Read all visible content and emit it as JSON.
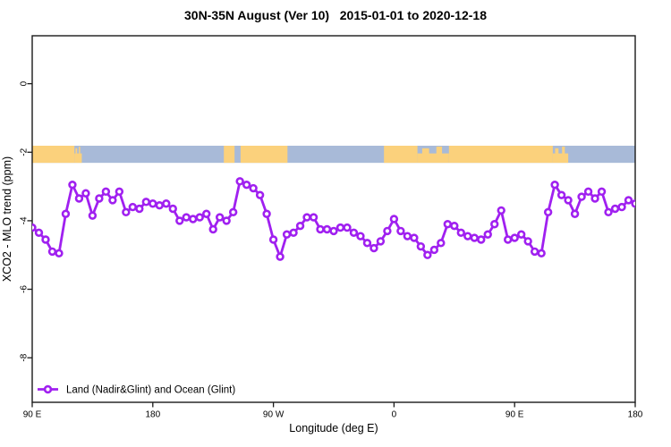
{
  "title": "30N-35N August (Ver 10)   2015-01-01 to 2020-12-18",
  "colors": {
    "series": "#A020F0",
    "marker_fill": "#ffffff",
    "land": "#FBD17C",
    "ocean": "#A8BAD8",
    "axis": "#1a1a1a"
  },
  "chart_data": {
    "type": "line",
    "title": "30N-35N August (Ver 10)   2015-01-01 to 2020-12-18",
    "xlabel": "Longitude (deg E)",
    "ylabel": "XCO2 - MLO trend (ppm)",
    "xlim": [
      90,
      540
    ],
    "ylim": [
      -9.3,
      1.4
    ],
    "grid": false,
    "legend_position": "bottom-left",
    "x_ticks": [
      {
        "pos": 90,
        "label": "90 E"
      },
      {
        "pos": 180,
        "label": "180"
      },
      {
        "pos": 270,
        "label": "90 W"
      },
      {
        "pos": 360,
        "label": "0"
      },
      {
        "pos": 450,
        "label": "90 E"
      },
      {
        "pos": 540,
        "label": "180"
      }
    ],
    "y_ticks": [
      {
        "pos": 0,
        "label": "0"
      },
      {
        "pos": -2,
        "label": "-2"
      },
      {
        "pos": -4,
        "label": "-4"
      },
      {
        "pos": -6,
        "label": "-6"
      },
      {
        "pos": -8,
        "label": "-8"
      }
    ],
    "map_band": {
      "note": "world coastline strip for latitude band 30N-35N drawn across the plot",
      "y_top": -1.81,
      "y_bottom": -2.31,
      "land_segments": [
        {
          "from": 90,
          "to": 121.5,
          "type": "land"
        },
        {
          "from": 121.5,
          "to": 127,
          "type": "coast"
        },
        {
          "from": 233,
          "to": 241,
          "type": "land"
        },
        {
          "from": 245.5,
          "to": 280.5,
          "type": "land"
        },
        {
          "from": 352.5,
          "to": 377.5,
          "type": "land"
        },
        {
          "from": 377.5,
          "to": 401,
          "type": "coast"
        },
        {
          "from": 401,
          "to": 478.5,
          "type": "land"
        },
        {
          "from": 478.5,
          "to": 490,
          "type": "coast"
        }
      ]
    },
    "series": [
      {
        "name": "Land (Nadir&Glint) and Ocean (Glint)",
        "x_start": 90,
        "x_step": 5,
        "values": [
          -4.2,
          -4.35,
          -4.55,
          -4.9,
          -4.95,
          -3.8,
          -2.95,
          -3.35,
          -3.2,
          -3.85,
          -3.35,
          -3.15,
          -3.4,
          -3.15,
          -3.75,
          -3.6,
          -3.65,
          -3.45,
          -3.5,
          -3.55,
          -3.5,
          -3.65,
          -4.0,
          -3.9,
          -3.95,
          -3.9,
          -3.8,
          -4.25,
          -3.9,
          -4.0,
          -3.75,
          -2.85,
          -2.95,
          -3.05,
          -3.25,
          -3.8,
          -4.55,
          -5.05,
          -4.4,
          -4.35,
          -4.15,
          -3.9,
          -3.9,
          -4.25,
          -4.25,
          -4.3,
          -4.2,
          -4.2,
          -4.35,
          -4.45,
          -4.65,
          -4.8,
          -4.6,
          -4.3,
          -3.95,
          -4.3,
          -4.45,
          -4.5,
          -4.75,
          -5.0,
          -4.85,
          -4.65,
          -4.1,
          -4.15,
          -4.35,
          -4.45,
          -4.5,
          -4.55,
          -4.4,
          -4.1,
          -3.7,
          -4.55,
          -4.5,
          -4.4,
          -4.6,
          -4.9,
          -4.95,
          -3.75,
          -2.95,
          -3.25,
          -3.4,
          -3.8,
          -3.3,
          -3.15,
          -3.35,
          -3.15,
          -3.75,
          -3.65,
          -3.6,
          -3.4,
          -3.5
        ]
      }
    ]
  }
}
